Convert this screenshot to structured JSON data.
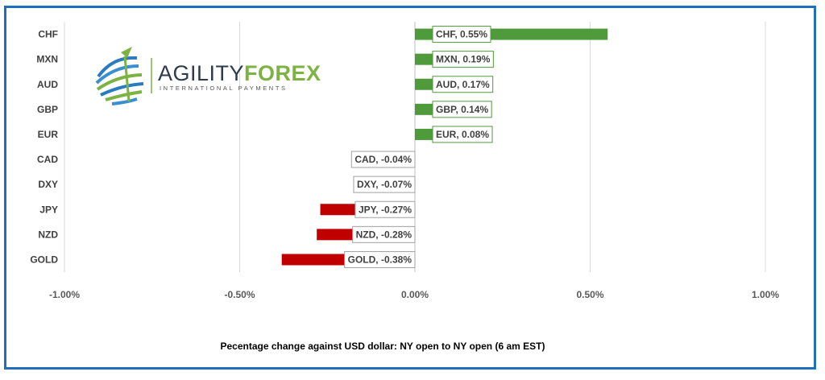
{
  "logo": {
    "name_part1": "AGILITY",
    "name_part2": "FOREX",
    "tagline": "INTERNATIONAL PAYMENTS",
    "colors": {
      "navy": "#2e3b4e",
      "green": "#7cb342",
      "blue": "#2b7bc0"
    }
  },
  "chart_data": {
    "type": "bar",
    "orientation": "horizontal",
    "categories": [
      "CHF",
      "MXN",
      "AUD",
      "GBP",
      "EUR",
      "CAD",
      "DXY",
      "JPY",
      "NZD",
      "GOLD"
    ],
    "values": [
      0.55,
      0.19,
      0.17,
      0.14,
      0.08,
      -0.04,
      -0.07,
      -0.27,
      -0.28,
      -0.38
    ],
    "data_labels": [
      "CHF, 0.55%",
      "MXN, 0.19%",
      "AUD, 0.17%",
      "GBP, 0.14%",
      "EUR, 0.08%",
      "CAD, -0.04%",
      "DXY, -0.07%",
      "JPY, -0.27%",
      "NZD, -0.28%",
      "GOLD, -0.38%"
    ],
    "xlim": [
      -1.0,
      1.0
    ],
    "x_ticks": [
      -1.0,
      -0.5,
      0.0,
      0.5,
      1.0
    ],
    "x_tick_labels": [
      "-1.00%",
      "-0.50%",
      "0.00%",
      "0.50%",
      "1.00%"
    ],
    "caption": "Pecentage change against USD dollar:  NY open to NY open  (6 am EST)",
    "grid": true,
    "colors": {
      "positive": "#4f9a3a",
      "negative": "#c00000",
      "label_border_pos": "#4f9a3a",
      "label_border_neg": "#a0a0a0",
      "gridline": "#d9d9d9",
      "frame": "#1f6fbf"
    }
  }
}
